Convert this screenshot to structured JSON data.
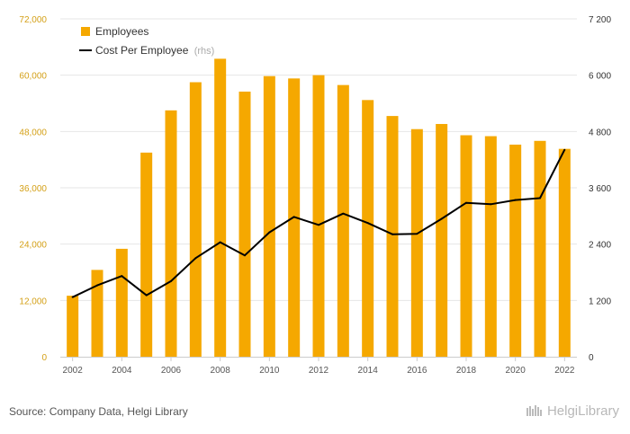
{
  "chart_data": {
    "type": "bar",
    "x": [
      "2002",
      "2003",
      "2004",
      "2005",
      "2006",
      "2007",
      "2008",
      "2009",
      "2010",
      "2011",
      "2012",
      "2013",
      "2014",
      "2015",
      "2016",
      "2017",
      "2018",
      "2019",
      "2020",
      "2021",
      "2022"
    ],
    "x_tick_labels": [
      "2002",
      "2004",
      "2006",
      "2008",
      "2010",
      "2012",
      "2014",
      "2016",
      "2018",
      "2020",
      "2022"
    ],
    "series": [
      {
        "name": "Employees",
        "type": "bar",
        "axis": "left",
        "color": "#f5a800",
        "values": [
          13000,
          18500,
          23000,
          43500,
          52500,
          58500,
          63500,
          56500,
          59800,
          59300,
          60000,
          57900,
          54700,
          51300,
          48500,
          49600,
          47200,
          47000,
          45200,
          46000,
          44300
        ]
      },
      {
        "name": "Cost Per Employee",
        "name_suffix": "(rhs)",
        "type": "line",
        "axis": "right",
        "color": "#000000",
        "values": [
          1270,
          1520,
          1720,
          1310,
          1610,
          2100,
          2440,
          2160,
          2650,
          2980,
          2810,
          3050,
          2850,
          2610,
          2620,
          2940,
          3280,
          3250,
          3340,
          3380,
          4410
        ]
      }
    ],
    "left_axis": {
      "ylim": [
        0,
        72000
      ],
      "ticks": [
        0,
        12000,
        24000,
        36000,
        48000,
        60000,
        72000
      ],
      "tick_labels": [
        "0",
        "12,000",
        "24,000",
        "36,000",
        "48,000",
        "60,000",
        "72,000"
      ]
    },
    "right_axis": {
      "ylim": [
        0,
        7200
      ],
      "ticks": [
        0,
        1200,
        2400,
        3600,
        4800,
        6000,
        7200
      ],
      "tick_labels": [
        "0",
        "1 200",
        "2 400",
        "3 600",
        "4 800",
        "6 000",
        "7 200"
      ]
    },
    "grid": true,
    "legend_position": "top-left"
  },
  "footer": {
    "source": "Source: Company Data, Helgi Library",
    "logo_text": "HelgiLibrary"
  },
  "colors": {
    "bar": "#f5a800",
    "line": "#000000",
    "grid": "#e6e6e6",
    "left_tick": "#d4a017"
  }
}
